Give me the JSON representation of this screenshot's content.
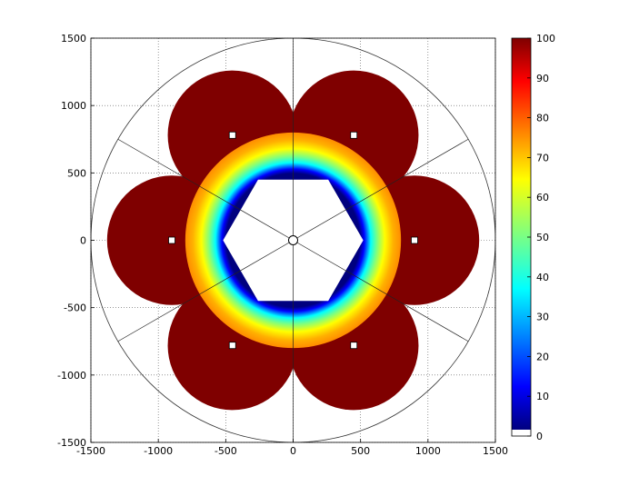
{
  "chart_data": {
    "type": "heatmap",
    "title": "",
    "xlabel": "",
    "ylabel": "",
    "xlim": [
      -1500,
      1500
    ],
    "ylim": [
      -1500,
      1500
    ],
    "xticks": [
      "-1500",
      "-1000",
      "-500",
      "0",
      "500",
      "1000",
      "1500"
    ],
    "yticks": [
      "1500",
      "1000",
      "500",
      "0",
      "-500",
      "-1000",
      "-1500"
    ],
    "grid": "dotted",
    "outer_circle_radius": 1500,
    "center_marker": {
      "x": 0,
      "y": 0,
      "shape": "open-circle"
    },
    "spokes_angles_deg": [
      30,
      90,
      150,
      210,
      270,
      330
    ],
    "satellites": [
      {
        "x": -450,
        "y": 780,
        "value": 100
      },
      {
        "x": 450,
        "y": 780,
        "value": 100
      },
      {
        "x": -900,
        "y": 0,
        "value": 100
      },
      {
        "x": 900,
        "y": 0,
        "value": 100
      },
      {
        "x": -450,
        "y": -780,
        "value": 100
      },
      {
        "x": 450,
        "y": -780,
        "value": 100
      }
    ],
    "satellite_lobe_radius": 480,
    "central_disk": {
      "radius": 800,
      "edge_value": 70,
      "inner_value": 5
    },
    "inner_hexagon_circumradius": 520,
    "colorbar": {
      "min": 0,
      "max": 100,
      "ticks": [
        "100",
        "90",
        "80",
        "70",
        "60",
        "50",
        "40",
        "30",
        "20",
        "10",
        "0"
      ],
      "colormap": "jet",
      "zero_color": "#ffffff"
    }
  }
}
